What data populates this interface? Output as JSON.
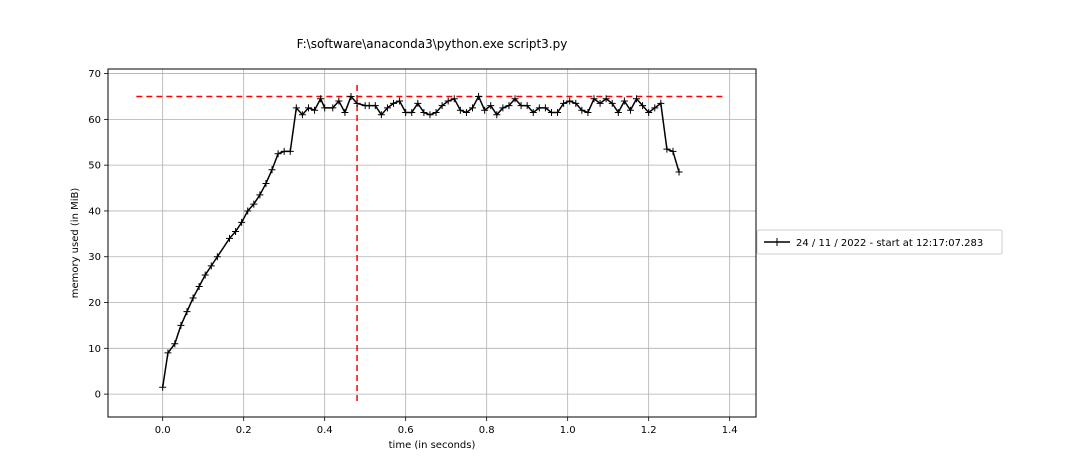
{
  "chart_data": {
    "type": "line",
    "title": "F:\\software\\anaconda3\\python.exe script3.py",
    "xlabel": "time (in seconds)",
    "ylabel": "memory used (in MiB)",
    "xlim": [
      -0.135,
      1.465
    ],
    "ylim": [
      -5,
      71
    ],
    "xticks": [
      0.0,
      0.2,
      0.4,
      0.6,
      0.8,
      1.0,
      1.2,
      1.4
    ],
    "xtick_labels": [
      "0.0",
      "0.2",
      "0.4",
      "0.6",
      "0.8",
      "1.0",
      "1.2",
      "1.4"
    ],
    "yticks": [
      0,
      10,
      20,
      30,
      40,
      50,
      60,
      70
    ],
    "ytick_labels": [
      "0",
      "10",
      "20",
      "30",
      "40",
      "50",
      "60",
      "70"
    ],
    "grid": true,
    "legend_position": "outside-right",
    "series": [
      {
        "name": "24 / 11 / 2022 - start at 12:17:07.283",
        "color": "#000000",
        "marker": "plus",
        "x": [
          0.0,
          0.013,
          0.03,
          0.045,
          0.06,
          0.075,
          0.09,
          0.105,
          0.12,
          0.135,
          0.165,
          0.18,
          0.195,
          0.21,
          0.225,
          0.24,
          0.255,
          0.27,
          0.285,
          0.3,
          0.315,
          0.33,
          0.345,
          0.36,
          0.375,
          0.39,
          0.4,
          0.42,
          0.435,
          0.45,
          0.465,
          0.48,
          0.5,
          0.51,
          0.525,
          0.54,
          0.555,
          0.57,
          0.585,
          0.6,
          0.615,
          0.63,
          0.645,
          0.66,
          0.675,
          0.69,
          0.705,
          0.72,
          0.735,
          0.75,
          0.765,
          0.78,
          0.795,
          0.81,
          0.825,
          0.84,
          0.855,
          0.87,
          0.885,
          0.9,
          0.915,
          0.93,
          0.945,
          0.96,
          0.975,
          0.99,
          1.005,
          1.02,
          1.035,
          1.05,
          1.065,
          1.08,
          1.095,
          1.11,
          1.125,
          1.14,
          1.155,
          1.17,
          1.185,
          1.2,
          1.215,
          1.23,
          1.245,
          1.26,
          1.275,
          1.29,
          1.305,
          1.32
        ],
        "y": [
          1.5,
          9,
          11,
          15,
          18,
          21,
          23.5,
          26,
          28,
          30,
          34,
          35.5,
          37.5,
          40,
          41.5,
          43.5,
          46,
          49,
          52.5,
          53,
          53,
          62.5,
          61,
          62.5,
          62,
          64.5,
          62.5,
          62.5,
          64,
          61.5,
          65,
          63.5,
          63,
          63,
          63,
          61,
          62.5,
          63.5,
          64,
          61.5,
          61.5,
          63.5,
          61.5,
          61,
          61.5,
          63,
          64,
          64.5,
          62,
          61.5,
          62.5,
          65,
          62,
          63,
          61,
          62.5,
          63,
          64.5,
          63,
          63,
          61.5,
          62.5,
          62.5,
          61.5,
          61.5,
          63.5,
          64,
          63.5,
          62,
          61.5,
          64.5,
          63.5,
          64.5,
          63.5,
          61.5,
          64,
          62,
          64.5,
          63,
          61.5,
          62.5,
          63.5,
          53.5,
          53,
          48.5,
          null,
          null,
          null
        ]
      }
    ],
    "annotations": [
      {
        "kind": "hline-dashed",
        "color": "#ff0000",
        "y": 65,
        "x_from": -0.065,
        "x_to": 1.39
      },
      {
        "kind": "vline-dashed",
        "color": "#ff0000",
        "x": 0.48,
        "y_from": -1.5,
        "y_to": 68
      }
    ]
  }
}
